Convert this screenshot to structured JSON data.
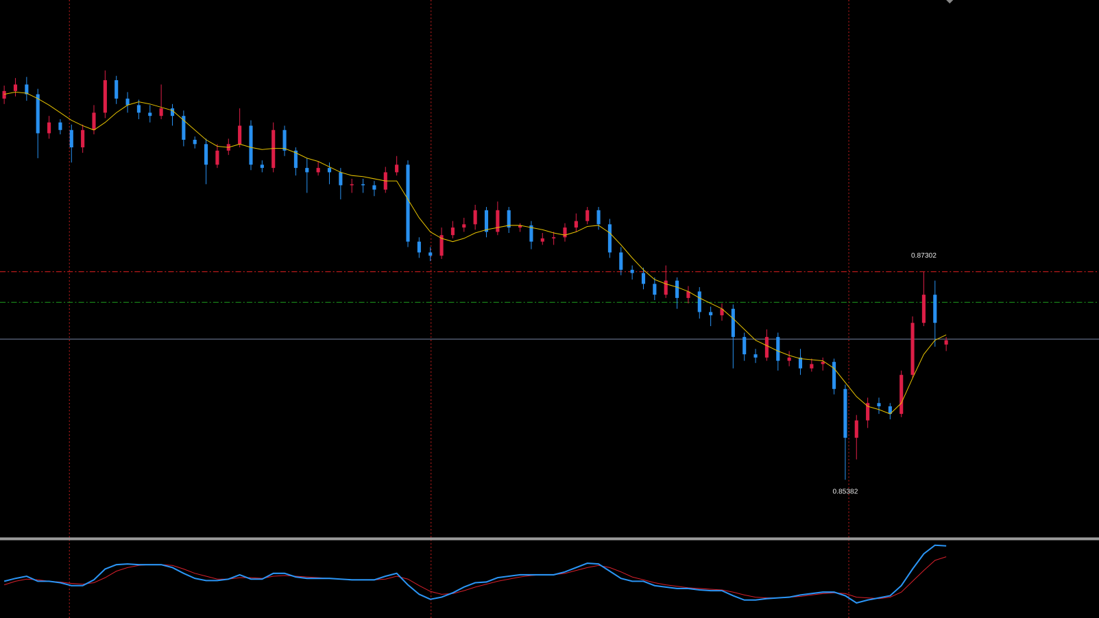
{
  "chart_data": [
    {
      "type": "candlestick",
      "ylim": [
        0.8485,
        0.8981
      ],
      "up_color": "#dc1e46",
      "down_color": "#2890f0",
      "open": [
        0.889,
        0.8897,
        0.8903,
        0.8894,
        0.8858,
        0.8868,
        0.8861,
        0.8845,
        0.8861,
        0.8877,
        0.8907,
        0.889,
        0.8884,
        0.8877,
        0.8874,
        0.8881,
        0.8874,
        0.8852,
        0.8848,
        0.8829,
        0.8842,
        0.8848,
        0.8865,
        0.8829,
        0.8826,
        0.8861,
        0.8842,
        0.8826,
        0.8822,
        0.8826,
        0.8822,
        0.881,
        0.8811,
        0.881,
        0.8806,
        0.8822,
        0.8829,
        0.8758,
        0.8748,
        0.8745,
        0.8764,
        0.8771,
        0.8774,
        0.8787,
        0.8767,
        0.8787,
        0.8771,
        0.8773,
        0.8758,
        0.8761,
        0.8762,
        0.8771,
        0.8777,
        0.8787,
        0.8774,
        0.8748,
        0.8732,
        0.8729,
        0.8719,
        0.8709,
        0.8722,
        0.8706,
        0.8712,
        0.8693,
        0.869,
        0.8696,
        0.867,
        0.8654,
        0.8651,
        0.867,
        0.8648,
        0.8651,
        0.8641,
        0.8645,
        0.8647,
        0.8622,
        0.8577,
        0.8593,
        0.8609,
        0.8606,
        0.8599,
        0.8635,
        0.8683,
        0.8709,
        0.8663
      ],
      "high": [
        0.8902,
        0.8909,
        0.891,
        0.8899,
        0.8874,
        0.8871,
        0.8866,
        0.8866,
        0.8884,
        0.8916,
        0.8911,
        0.8896,
        0.8889,
        0.8884,
        0.8903,
        0.8885,
        0.8879,
        0.8855,
        0.8853,
        0.8848,
        0.8853,
        0.8881,
        0.887,
        0.8833,
        0.8868,
        0.8865,
        0.8845,
        0.8835,
        0.8832,
        0.8831,
        0.8826,
        0.8816,
        0.8816,
        0.8814,
        0.8827,
        0.8837,
        0.8833,
        0.8762,
        0.8753,
        0.8771,
        0.8777,
        0.878,
        0.8792,
        0.879,
        0.8795,
        0.879,
        0.8775,
        0.8777,
        0.8766,
        0.8767,
        0.8775,
        0.8784,
        0.879,
        0.879,
        0.8779,
        0.8753,
        0.8736,
        0.8734,
        0.8725,
        0.8736,
        0.8725,
        0.8717,
        0.8716,
        0.8698,
        0.8701,
        0.87,
        0.8674,
        0.8659,
        0.8677,
        0.8674,
        0.8657,
        0.8659,
        0.865,
        0.8651,
        0.865,
        0.8626,
        0.8598,
        0.8614,
        0.8614,
        0.8609,
        0.8639,
        0.8689,
        0.87302,
        0.8722,
        0.867
      ],
      "low": [
        0.8885,
        0.8892,
        0.8888,
        0.8835,
        0.8853,
        0.8857,
        0.8831,
        0.884,
        0.8857,
        0.8872,
        0.8885,
        0.8877,
        0.8871,
        0.8868,
        0.8871,
        0.8865,
        0.8846,
        0.8844,
        0.8811,
        0.8826,
        0.8838,
        0.8845,
        0.8824,
        0.8822,
        0.8822,
        0.8837,
        0.8819,
        0.8803,
        0.8819,
        0.8811,
        0.8797,
        0.8803,
        0.8803,
        0.88,
        0.8803,
        0.8819,
        0.8753,
        0.8743,
        0.874,
        0.8742,
        0.8761,
        0.8767,
        0.8769,
        0.8762,
        0.8764,
        0.8766,
        0.8767,
        0.8751,
        0.8755,
        0.8755,
        0.8758,
        0.8767,
        0.8774,
        0.8769,
        0.8743,
        0.8727,
        0.8723,
        0.8714,
        0.8704,
        0.8706,
        0.8696,
        0.8701,
        0.8687,
        0.868,
        0.8685,
        0.8641,
        0.8648,
        0.8646,
        0.8648,
        0.8639,
        0.8643,
        0.8635,
        0.8638,
        0.8639,
        0.8617,
        0.85382,
        0.8557,
        0.8586,
        0.8599,
        0.8594,
        0.8596,
        0.8632,
        0.868,
        0.8661,
        0.8657
      ],
      "close": [
        0.8897,
        0.8903,
        0.8894,
        0.8858,
        0.8868,
        0.8861,
        0.8845,
        0.8861,
        0.8877,
        0.8907,
        0.889,
        0.8884,
        0.8877,
        0.8874,
        0.8881,
        0.8874,
        0.8852,
        0.8848,
        0.8829,
        0.8842,
        0.8848,
        0.8865,
        0.8829,
        0.8826,
        0.8861,
        0.8842,
        0.8826,
        0.8822,
        0.8826,
        0.8822,
        0.881,
        0.8811,
        0.881,
        0.8806,
        0.8822,
        0.8829,
        0.8758,
        0.8748,
        0.8745,
        0.8764,
        0.8771,
        0.8774,
        0.8787,
        0.8767,
        0.8787,
        0.8771,
        0.8773,
        0.8758,
        0.8761,
        0.8762,
        0.8771,
        0.8777,
        0.8787,
        0.8774,
        0.8748,
        0.8732,
        0.8729,
        0.8719,
        0.8709,
        0.8722,
        0.8706,
        0.8712,
        0.8693,
        0.869,
        0.8696,
        0.867,
        0.8654,
        0.8651,
        0.867,
        0.8648,
        0.8651,
        0.8641,
        0.8645,
        0.8647,
        0.8622,
        0.8577,
        0.8593,
        0.8609,
        0.8606,
        0.8599,
        0.8635,
        0.8683,
        0.8709,
        0.8683,
        0.8667
      ],
      "high_value_labels": {
        "82": "0.87302"
      },
      "low_value_labels": {
        "75": "0.85382"
      },
      "ma": {
        "color": "#e6c200",
        "values": [
          0.8894,
          0.8896,
          0.8895,
          0.889,
          0.8884,
          0.8877,
          0.887,
          0.8865,
          0.8861,
          0.8868,
          0.8877,
          0.8884,
          0.8887,
          0.8885,
          0.8882,
          0.8879,
          0.887,
          0.8861,
          0.8852,
          0.8846,
          0.8845,
          0.8848,
          0.8845,
          0.8843,
          0.8844,
          0.8844,
          0.884,
          0.8835,
          0.8832,
          0.8827,
          0.8822,
          0.8819,
          0.8818,
          0.8816,
          0.8814,
          0.8814,
          0.8797,
          0.878,
          0.8767,
          0.8761,
          0.8758,
          0.8761,
          0.8766,
          0.8769,
          0.8771,
          0.8773,
          0.8773,
          0.8771,
          0.8769,
          0.8766,
          0.8764,
          0.8767,
          0.8772,
          0.8773,
          0.8766,
          0.8755,
          0.8743,
          0.8732,
          0.8723,
          0.8719,
          0.8716,
          0.8712,
          0.8706,
          0.8701,
          0.8696,
          0.8687,
          0.8677,
          0.8667,
          0.8662,
          0.8657,
          0.8653,
          0.865,
          0.8649,
          0.8648,
          0.8641,
          0.8628,
          0.8615,
          0.8606,
          0.8603,
          0.8599,
          0.8609,
          0.8632,
          0.8654,
          0.8667,
          0.8672
        ]
      },
      "levels": [
        {
          "value": 0.87302,
          "color": "#e02020",
          "style": "dashdot"
        },
        {
          "value": 0.8702,
          "color": "#1ea01e",
          "style": "dashdot"
        },
        {
          "value": 0.8668,
          "color": "#7a88a8",
          "style": "solid"
        }
      ]
    },
    {
      "type": "line",
      "ylim": [
        0,
        100
      ],
      "series": [
        {
          "color": "#2b95f5",
          "values": [
            47,
            51,
            54,
            47,
            47,
            45,
            41,
            41,
            49,
            64,
            70,
            71,
            70,
            70,
            70,
            66,
            58,
            51,
            48,
            48,
            50,
            56,
            50,
            50,
            58,
            58,
            53,
            51,
            51,
            51,
            50,
            49,
            49,
            49,
            54,
            58,
            42,
            29,
            22,
            25,
            31,
            39,
            45,
            46,
            52,
            54,
            56,
            56,
            56,
            56,
            60,
            66,
            72,
            71,
            61,
            51,
            47,
            47,
            41,
            39,
            37,
            37,
            35,
            34,
            34,
            27,
            21,
            21,
            23,
            24,
            25,
            28,
            30,
            32,
            32,
            27,
            17,
            21,
            24,
            27,
            41,
            64,
            85,
            97,
            96
          ]
        },
        {
          "color": "#d8202c",
          "values": [
            42,
            47,
            50,
            49,
            47,
            46,
            44,
            43,
            45,
            52,
            61,
            66,
            69,
            70,
            70,
            69,
            64,
            58,
            54,
            50,
            50,
            52,
            52,
            51,
            54,
            55,
            54,
            53,
            52,
            51,
            50,
            49,
            49,
            49,
            50,
            54,
            50,
            41,
            33,
            29,
            30,
            34,
            39,
            43,
            47,
            50,
            53,
            55,
            56,
            56,
            58,
            62,
            66,
            69,
            66,
            60,
            53,
            49,
            45,
            42,
            40,
            38,
            37,
            36,
            35,
            32,
            28,
            25,
            24,
            24,
            25,
            26,
            28,
            30,
            31,
            30,
            25,
            24,
            23,
            25,
            32,
            47,
            62,
            76,
            81
          ]
        }
      ]
    }
  ]
}
